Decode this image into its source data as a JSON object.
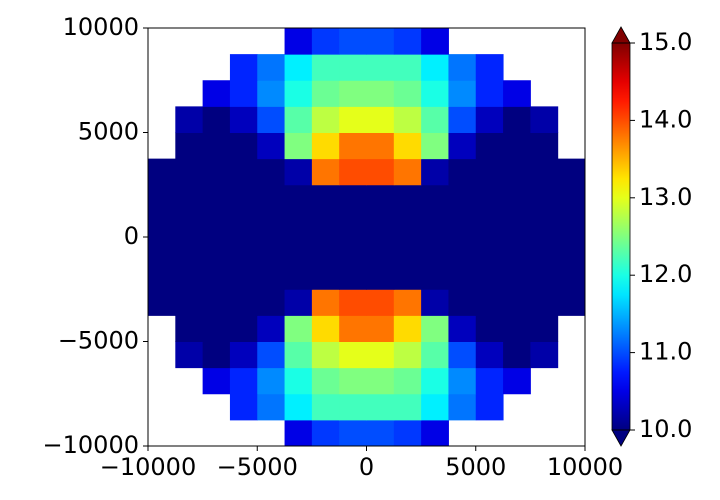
{
  "chart_data": {
    "type": "heatmap",
    "x": [
      -9375,
      -8125,
      -6875,
      -5625,
      -4375,
      -3125,
      -1875,
      -625,
      625,
      1875,
      3125,
      4375,
      5625,
      6875,
      8125,
      9375
    ],
    "y": [
      -9375,
      -8125,
      -6875,
      -5625,
      -4375,
      -3125,
      -1875,
      -625,
      625,
      1875,
      3125,
      4375,
      5625,
      6875,
      8125,
      9375
    ],
    "z": [
      [
        null,
        null,
        null,
        null,
        null,
        10.5,
        10.9,
        11.0,
        11.0,
        10.9,
        10.5,
        null,
        null,
        null,
        null,
        null
      ],
      [
        null,
        null,
        null,
        10.8,
        11.2,
        11.8,
        12.2,
        12.2,
        12.2,
        12.2,
        11.8,
        11.2,
        10.8,
        null,
        null,
        null
      ],
      [
        null,
        null,
        10.5,
        10.8,
        11.3,
        12.0,
        12.4,
        12.5,
        12.5,
        12.4,
        12.0,
        11.3,
        10.8,
        10.5,
        null,
        null
      ],
      [
        null,
        10.2,
        10.0,
        10.3,
        11.0,
        12.3,
        12.8,
        13.0,
        13.0,
        12.8,
        12.3,
        11.0,
        10.3,
        10.0,
        10.2,
        null
      ],
      [
        null,
        10.0,
        10.0,
        10.0,
        10.3,
        12.5,
        13.3,
        13.8,
        13.8,
        13.3,
        12.5,
        10.3,
        10.0,
        10.0,
        10.0,
        null
      ],
      [
        10,
        10,
        10,
        10,
        10,
        10.2,
        13.8,
        14.0,
        14.0,
        13.8,
        10.2,
        10,
        10,
        10,
        10,
        10
      ],
      [
        10,
        10,
        10,
        10,
        10,
        10,
        10,
        10,
        10,
        10,
        10,
        10,
        10,
        10,
        10,
        10
      ],
      [
        10,
        10,
        10,
        10,
        10,
        10,
        10,
        10,
        10,
        10,
        10,
        10,
        10,
        10,
        10,
        10
      ],
      [
        10,
        10,
        10,
        10,
        10,
        10,
        10,
        10,
        10,
        10,
        10,
        10,
        10,
        10,
        10,
        10
      ],
      [
        10,
        10,
        10,
        10,
        10,
        10,
        10,
        10,
        10,
        10,
        10,
        10,
        10,
        10,
        10,
        10
      ],
      [
        10,
        10,
        10,
        10,
        10,
        10.2,
        13.8,
        14.0,
        14.0,
        13.8,
        10.2,
        10,
        10,
        10,
        10,
        10
      ],
      [
        null,
        10.0,
        10.0,
        10.0,
        10.3,
        12.5,
        13.3,
        13.8,
        13.8,
        13.3,
        12.5,
        10.3,
        10.0,
        10.0,
        10.0,
        null
      ],
      [
        null,
        10.2,
        10.0,
        10.3,
        11.0,
        12.3,
        12.8,
        13.0,
        13.0,
        12.8,
        12.3,
        11.0,
        10.3,
        10.0,
        10.2,
        null
      ],
      [
        null,
        null,
        10.5,
        10.8,
        11.3,
        12.0,
        12.4,
        12.5,
        12.5,
        12.4,
        12.0,
        11.3,
        10.8,
        10.5,
        null,
        null
      ],
      [
        null,
        null,
        null,
        10.8,
        11.2,
        11.8,
        12.2,
        12.2,
        12.2,
        12.2,
        11.8,
        11.2,
        10.8,
        null,
        null,
        null
      ],
      [
        null,
        null,
        null,
        null,
        null,
        10.5,
        10.9,
        11.0,
        11.0,
        10.9,
        10.5,
        null,
        null,
        null,
        null,
        null
      ]
    ],
    "xlim": [
      -10000,
      10000
    ],
    "ylim": [
      -10000,
      10000
    ],
    "xticks": [
      {
        "value": -10000,
        "label": "−10000"
      },
      {
        "value": -5000,
        "label": "−5000"
      },
      0,
      5000,
      10000
    ],
    "yticks": [
      {
        "value": -10000,
        "label": "−10000"
      },
      {
        "value": -5000,
        "label": "−5000"
      },
      0,
      5000,
      10000
    ],
    "colorbar": {
      "colormap": "jet",
      "lim": [
        10,
        15
      ],
      "extend": "both",
      "ticks": [
        {
          "value": 10,
          "label": "10.0"
        },
        {
          "value": 11,
          "label": "11.0"
        },
        {
          "value": 12,
          "label": "12.0"
        },
        {
          "value": 13,
          "label": "13.0"
        },
        {
          "value": 14,
          "label": "14.0"
        },
        {
          "value": 15,
          "label": "15.0"
        }
      ]
    }
  }
}
